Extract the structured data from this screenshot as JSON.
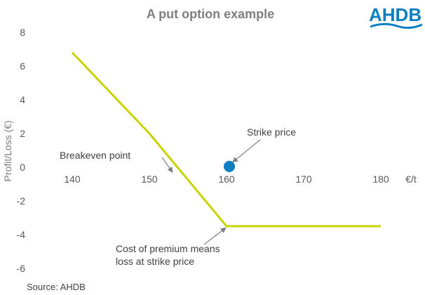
{
  "chart_data": {
    "type": "line",
    "title": "A put option example",
    "ylabel": "Profit/Loss (€)",
    "x_unit_label": "€/t",
    "xlim": [
      135,
      185
    ],
    "ylim": [
      -6.3,
      8
    ],
    "x_ticks": [
      140,
      150,
      160,
      170,
      180
    ],
    "y_ticks": [
      8,
      6,
      4,
      2,
      0,
      -2,
      -4,
      -6
    ],
    "grid": false,
    "series": [
      {
        "color": "#c8d400",
        "x": [
          140,
          150,
          160,
          180
        ],
        "y": [
          6.8,
          2.0,
          -3.5,
          -3.5
        ]
      }
    ],
    "marker": {
      "label": "Strike price",
      "x": 160,
      "y": 0,
      "color": "#0b7fc1"
    },
    "annotations": [
      {
        "id": "breakeven",
        "lines": [
          "Breakeven point"
        ],
        "target": {
          "x": 153,
          "y": -0.3
        }
      },
      {
        "id": "strike",
        "lines": [
          "Strike price"
        ],
        "target": {
          "x": 160.8,
          "y": 0.3
        }
      },
      {
        "id": "premium",
        "lines": [
          "Cost of premium means",
          "loss at strike price"
        ],
        "target": {
          "x": 159.9,
          "y": -3.6
        }
      }
    ]
  },
  "source_text": "Source: AHDB",
  "logo": {
    "text": "AHDB",
    "color": "#0b7fc1"
  }
}
